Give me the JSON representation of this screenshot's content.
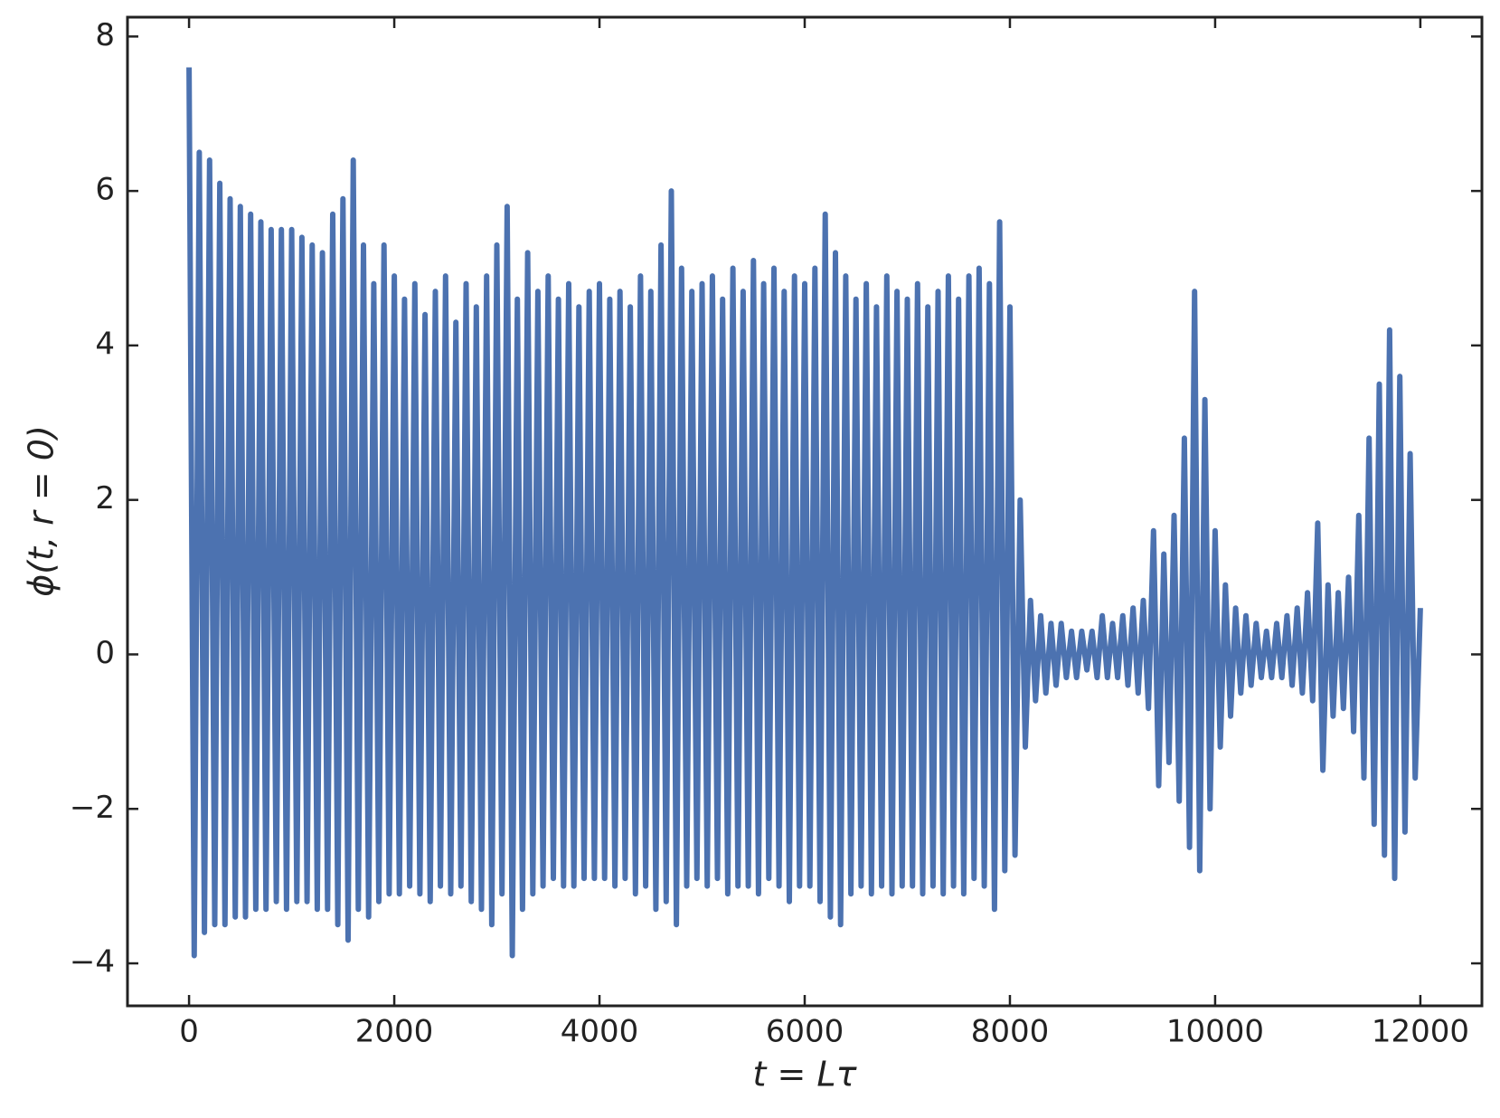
{
  "chart_data": {
    "type": "line",
    "xlabel": "t = Lτ",
    "ylabel": "ϕ(t, r = 0)",
    "color": "#4c72b0",
    "xlim": [
      -600,
      12600
    ],
    "ylim": [
      -4.55,
      8.25
    ],
    "xticks": [
      0,
      2000,
      4000,
      6000,
      8000,
      10000,
      12000
    ],
    "yticks": [
      {
        "value": -4,
        "label": "−4"
      },
      {
        "value": -2,
        "label": "−2"
      },
      0,
      2,
      4,
      6,
      8
    ],
    "x": [
      0,
      50,
      100,
      150,
      200,
      250,
      300,
      350,
      400,
      450,
      500,
      550,
      600,
      650,
      700,
      750,
      800,
      850,
      900,
      950,
      1000,
      1050,
      1100,
      1150,
      1200,
      1250,
      1300,
      1350,
      1400,
      1450,
      1500,
      1550,
      1600,
      1650,
      1700,
      1750,
      1800,
      1850,
      1900,
      1950,
      2000,
      2050,
      2100,
      2150,
      2200,
      2250,
      2300,
      2350,
      2400,
      2450,
      2500,
      2550,
      2600,
      2650,
      2700,
      2750,
      2800,
      2850,
      2900,
      2950,
      3000,
      3050,
      3100,
      3150,
      3200,
      3250,
      3300,
      3350,
      3400,
      3450,
      3500,
      3550,
      3600,
      3650,
      3700,
      3750,
      3800,
      3850,
      3900,
      3950,
      4000,
      4050,
      4100,
      4150,
      4200,
      4250,
      4300,
      4350,
      4400,
      4450,
      4500,
      4550,
      4600,
      4650,
      4700,
      4750,
      4800,
      4850,
      4900,
      4950,
      5000,
      5050,
      5100,
      5150,
      5200,
      5250,
      5300,
      5350,
      5400,
      5450,
      5500,
      5550,
      5600,
      5650,
      5700,
      5750,
      5800,
      5850,
      5900,
      5950,
      6000,
      6050,
      6100,
      6150,
      6200,
      6250,
      6300,
      6350,
      6400,
      6450,
      6500,
      6550,
      6600,
      6650,
      6700,
      6750,
      6800,
      6850,
      6900,
      6950,
      7000,
      7050,
      7100,
      7150,
      7200,
      7250,
      7300,
      7350,
      7400,
      7450,
      7500,
      7550,
      7600,
      7650,
      7700,
      7750,
      7800,
      7850,
      7900,
      7950,
      8000,
      8050,
      8100,
      8150,
      8200,
      8250,
      8300,
      8350,
      8400,
      8450,
      8500,
      8550,
      8600,
      8650,
      8700,
      8750,
      8800,
      8850,
      8900,
      8950,
      9000,
      9050,
      9100,
      9150,
      9200,
      9250,
      9300,
      9350,
      9400,
      9450,
      9500,
      9550,
      9600,
      9650,
      9700,
      9750,
      9800,
      9850,
      9900,
      9950,
      10000,
      10050,
      10100,
      10150,
      10200,
      10250,
      10300,
      10350,
      10400,
      10450,
      10500,
      10550,
      10600,
      10650,
      10700,
      10750,
      10800,
      10850,
      10900,
      10950,
      11000,
      11050,
      11100,
      11150,
      11200,
      11250,
      11300,
      11350,
      11400,
      11450,
      11500,
      11550,
      11600,
      11650,
      11700,
      11750,
      11800,
      11850,
      11900,
      11950,
      12000
    ],
    "values": [
      7.6,
      -3.9,
      6.5,
      -3.6,
      6.4,
      -3.5,
      6.1,
      -3.5,
      5.9,
      -3.4,
      5.8,
      -3.4,
      5.7,
      -3.3,
      5.6,
      -3.3,
      5.5,
      -3.2,
      5.5,
      -3.3,
      5.5,
      -3.2,
      5.4,
      -3.2,
      5.3,
      -3.3,
      5.2,
      -3.3,
      5.7,
      -3.5,
      5.9,
      -3.7,
      6.4,
      -3.3,
      5.3,
      -3.4,
      4.8,
      -3.2,
      5.3,
      -3.1,
      4.9,
      -3.1,
      4.6,
      -3.0,
      4.8,
      -3.1,
      4.4,
      -3.2,
      4.7,
      -3.0,
      4.9,
      -3.1,
      4.3,
      -3.0,
      4.8,
      -3.2,
      4.5,
      -3.3,
      4.9,
      -3.5,
      5.3,
      -3.1,
      5.8,
      -3.9,
      4.6,
      -3.3,
      5.2,
      -3.1,
      4.7,
      -3.0,
      4.9,
      -2.9,
      4.6,
      -3.0,
      4.8,
      -3.0,
      4.5,
      -2.9,
      4.7,
      -2.9,
      4.8,
      -2.9,
      4.6,
      -3.0,
      4.7,
      -2.9,
      4.5,
      -3.1,
      4.9,
      -3.0,
      4.7,
      -3.3,
      5.3,
      -3.2,
      6.0,
      -3.5,
      5.0,
      -3.0,
      4.7,
      -2.9,
      4.8,
      -3.0,
      4.9,
      -2.9,
      4.6,
      -3.1,
      5.0,
      -3.0,
      4.7,
      -3.0,
      5.1,
      -3.1,
      4.8,
      -2.9,
      5.0,
      -3.0,
      4.7,
      -3.2,
      4.9,
      -3.0,
      4.8,
      -3.0,
      5.0,
      -3.2,
      5.7,
      -3.4,
      5.2,
      -3.5,
      4.9,
      -3.1,
      4.6,
      -3.0,
      4.8,
      -3.1,
      4.5,
      -3.0,
      4.9,
      -3.1,
      4.7,
      -3.0,
      4.6,
      -3.0,
      4.8,
      -3.1,
      4.5,
      -3.0,
      4.7,
      -3.1,
      4.9,
      -3.0,
      4.6,
      -3.1,
      4.9,
      -2.9,
      5.0,
      -3.0,
      4.8,
      -3.3,
      5.6,
      -2.8,
      4.5,
      -2.6,
      2.0,
      -1.2,
      0.7,
      -0.6,
      0.5,
      -0.5,
      0.4,
      -0.4,
      0.4,
      -0.3,
      0.3,
      -0.3,
      0.3,
      -0.2,
      0.3,
      -0.3,
      0.5,
      -0.3,
      0.4,
      -0.3,
      0.5,
      -0.4,
      0.6,
      -0.5,
      0.7,
      -0.7,
      1.6,
      -1.7,
      1.3,
      -1.4,
      1.8,
      -1.9,
      2.8,
      -2.5,
      4.7,
      -2.8,
      3.3,
      -2.0,
      1.6,
      -1.2,
      0.9,
      -0.8,
      0.6,
      -0.5,
      0.5,
      -0.4,
      0.4,
      -0.3,
      0.3,
      -0.3,
      0.4,
      -0.3,
      0.5,
      -0.4,
      0.6,
      -0.5,
      0.8,
      -0.6,
      1.7,
      -1.5,
      0.9,
      -0.8,
      0.8,
      -0.7,
      1.0,
      -1.0,
      1.8,
      -1.6,
      2.8,
      -2.2,
      3.5,
      -2.6,
      4.2,
      -2.9,
      3.6,
      -2.3,
      2.6,
      -1.6,
      0.6
    ]
  }
}
